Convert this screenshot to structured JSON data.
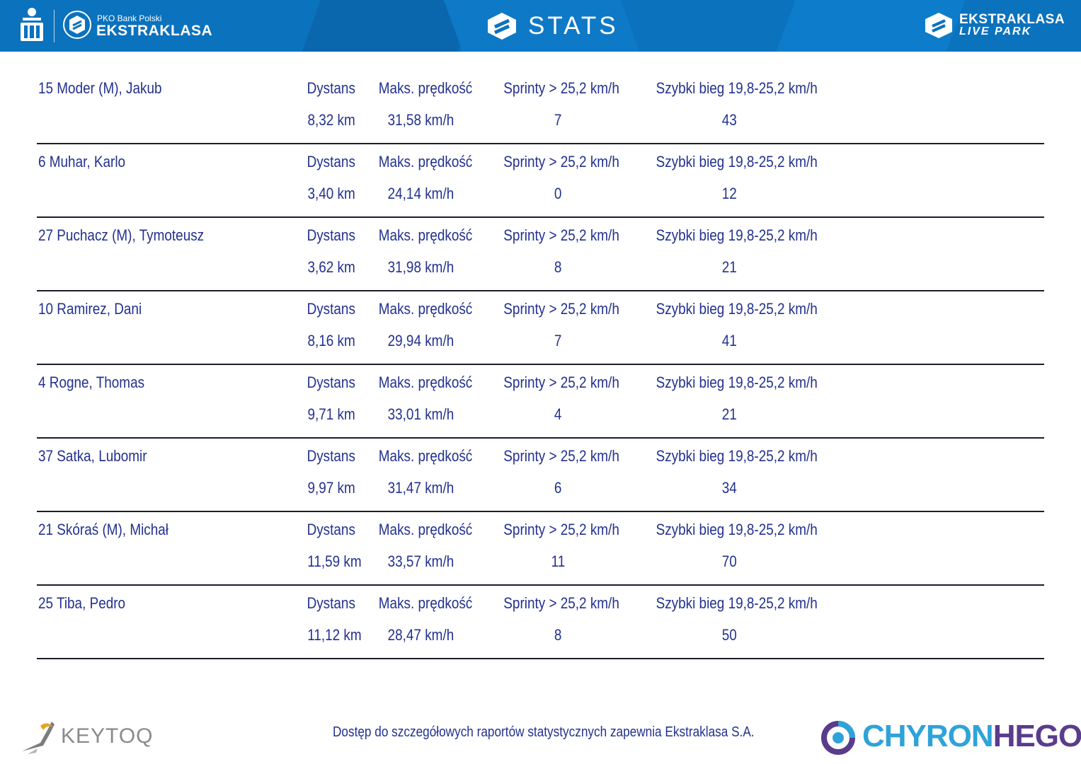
{
  "header": {
    "sponsor": "PKO Bank Polski",
    "league": "EKSTRAKLASA",
    "title": "STATS",
    "live_park_line1": "EKSTRAKLASA",
    "live_park_line2": "LIVE PARK",
    "colors": {
      "bar": "#0b72bd",
      "text": "#ffffff"
    }
  },
  "players": [
    {
      "name": "15  Moder (M), Jakub",
      "labels": [
        "Dystans",
        "Maks. prędkość",
        "Sprinty > 25,2 km/h",
        "Szybki bieg 19,8-25,2 km/h"
      ],
      "values": [
        "8,32 km",
        "31,58 km/h",
        "7",
        "43"
      ]
    },
    {
      "name": "6  Muhar, Karlo",
      "labels": [
        "Dystans",
        "Maks. prędkość",
        "Sprinty > 25,2 km/h",
        "Szybki bieg 19,8-25,2 km/h"
      ],
      "values": [
        "3,40 km",
        "24,14 km/h",
        "0",
        "12"
      ]
    },
    {
      "name": "27  Puchacz (M), Tymoteusz",
      "labels": [
        "Dystans",
        "Maks. prędkość",
        "Sprinty > 25,2 km/h",
        "Szybki bieg 19,8-25,2 km/h"
      ],
      "values": [
        "3,62 km",
        "31,98 km/h",
        "8",
        "21"
      ]
    },
    {
      "name": "10  Ramirez, Dani",
      "labels": [
        "Dystans",
        "Maks. prędkość",
        "Sprinty > 25,2 km/h",
        "Szybki bieg 19,8-25,2 km/h"
      ],
      "values": [
        "8,16 km",
        "29,94 km/h",
        "7",
        "41"
      ]
    },
    {
      "name": "4  Rogne, Thomas",
      "labels": [
        "Dystans",
        "Maks. prędkość",
        "Sprinty > 25,2 km/h",
        "Szybki bieg 19,8-25,2 km/h"
      ],
      "values": [
        "9,71 km",
        "33,01 km/h",
        "4",
        "21"
      ]
    },
    {
      "name": "37  Satka, Lubomir",
      "labels": [
        "Dystans",
        "Maks. prędkość",
        "Sprinty > 25,2 km/h",
        "Szybki bieg 19,8-25,2 km/h"
      ],
      "values": [
        "9,97 km",
        "31,47 km/h",
        "6",
        "34"
      ]
    },
    {
      "name": "21  Skóraś (M), Michał",
      "labels": [
        "Dystans",
        "Maks. prędkość",
        "Sprinty > 25,2 km/h",
        "Szybki bieg 19,8-25,2 km/h"
      ],
      "values": [
        "11,59 km",
        "33,57 km/h",
        "11",
        "70"
      ]
    },
    {
      "name": "25  Tiba, Pedro",
      "labels": [
        "Dystans",
        "Maks. prędkość",
        "Sprinty > 25,2 km/h",
        "Szybki bieg 19,8-25,2 km/h"
      ],
      "values": [
        "11,12 km",
        "28,47 km/h",
        "8",
        "50"
      ]
    }
  ],
  "footer": {
    "keytoq": "KEYTOQ",
    "note": "Dostęp do szczegółowych raportów statystycznych zapewnia Ekstraklasa S.A.",
    "chyron_part1": "CHYRON",
    "chyron_part2": "HEGO"
  },
  "colors": {
    "text_blue": "#23318f",
    "rule": "#1d1d2b"
  }
}
